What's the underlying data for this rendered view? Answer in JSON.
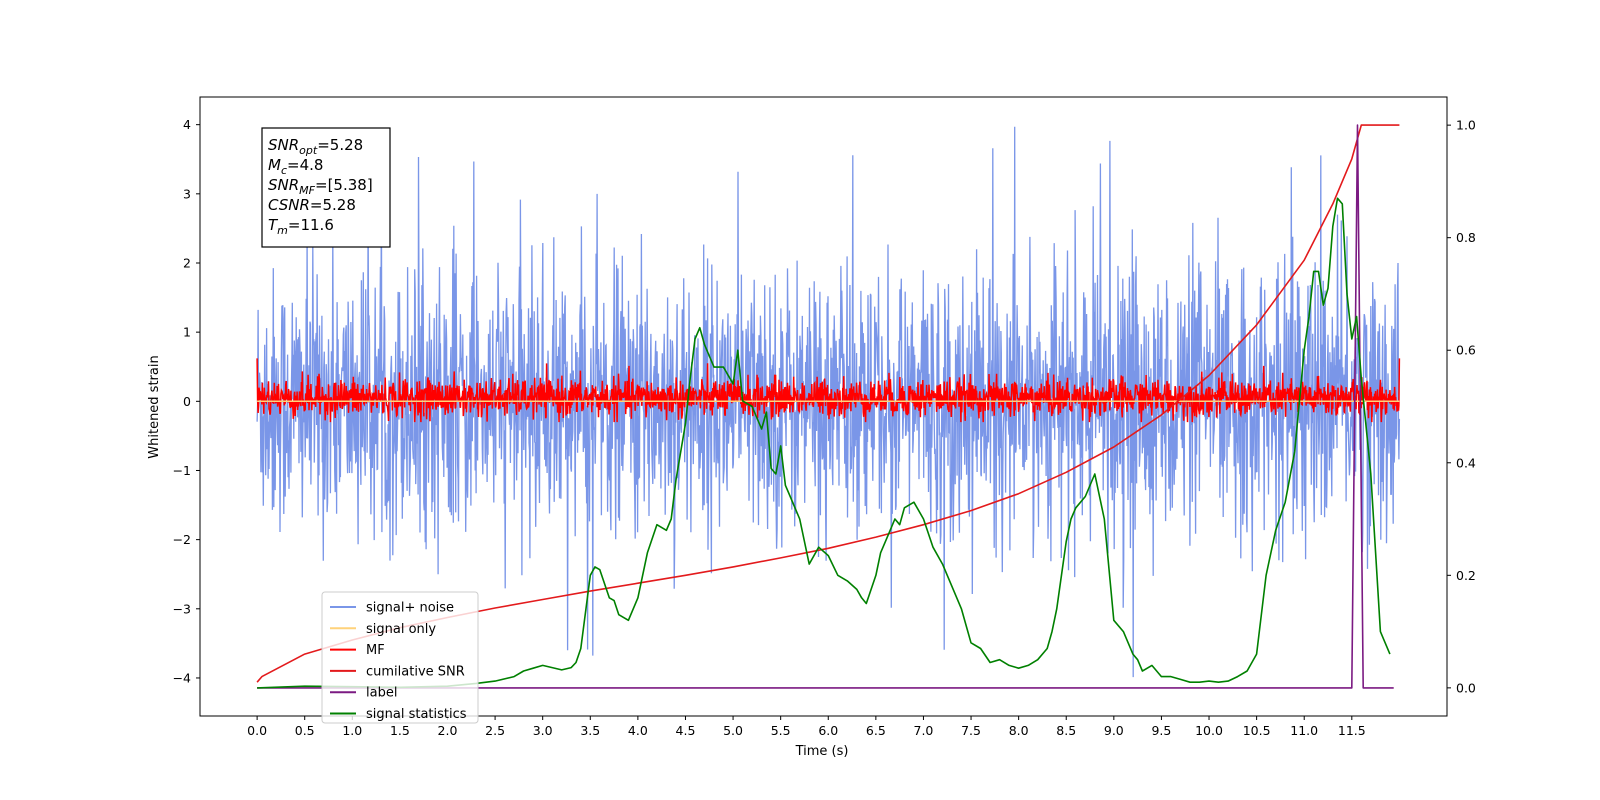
{
  "chart_data": {
    "type": "line",
    "xlabel": "Time (s)",
    "ylabel": "Whitened strain",
    "xlim": [
      -0.6,
      12.5
    ],
    "ylim": [
      -4.55,
      4.4
    ],
    "y2lim": [
      -0.05,
      1.05
    ],
    "x_ticks": [
      0.0,
      0.5,
      1.0,
      1.5,
      2.0,
      2.5,
      3.0,
      3.5,
      4.0,
      4.5,
      5.0,
      5.5,
      6.0,
      6.5,
      7.0,
      7.5,
      8.0,
      8.5,
      9.0,
      9.5,
      10.0,
      10.5,
      11.0,
      11.5
    ],
    "x_tick_labels": [
      "0.0",
      "0.5",
      "1.0",
      "1.5",
      "2.0",
      "2.5",
      "3.0",
      "3.5",
      "4.0",
      "4.5",
      "5.0",
      "5.5",
      "6.0",
      "6.5",
      "7.0",
      "7.5",
      "8.0",
      "8.5",
      "9.0",
      "9.5",
      "10.0",
      "10.5",
      "11.0",
      "11.5"
    ],
    "y_ticks": [
      -4,
      -3,
      -2,
      -1,
      0,
      1,
      2,
      3,
      4
    ],
    "y_tick_labels": [
      "−4",
      "−3",
      "−2",
      "−1",
      "0",
      "1",
      "2",
      "3",
      "4"
    ],
    "y2_ticks": [
      0.0,
      0.2,
      0.4,
      0.6,
      0.8,
      1.0
    ],
    "y2_tick_labels": [
      "0.0",
      "0.2",
      "0.4",
      "0.6",
      "0.8",
      "1.0"
    ],
    "legend_position": "lower-left",
    "annotation": {
      "lines": [
        {
          "base": "SNR",
          "sub": "opt",
          "value": "=5.28"
        },
        {
          "base": "M",
          "sub": "c",
          "value": "=4.8"
        },
        {
          "base": "SNR",
          "sub": "MF",
          "value": "=[5.38]"
        },
        {
          "base": "CSNR",
          "sub": "",
          "value": "=5.28"
        },
        {
          "base": "T",
          "sub": "m",
          "value": "=11.6"
        }
      ]
    },
    "series": [
      {
        "name": "signal+ noise",
        "color": "#7a96e8",
        "axis": "left",
        "x_range": [
          0.0,
          12.0
        ],
        "n_points": 2400,
        "envelope": {
          "mean": 0.0,
          "typical_min": -2.3,
          "typical_max": 2.3,
          "peak_min": -4.15,
          "peak_max": 4.0
        }
      },
      {
        "name": "signal only",
        "color": "#ffd27a",
        "axis": "left",
        "x": [
          0.0,
          12.0
        ],
        "y": [
          0.0,
          0.0
        ]
      },
      {
        "name": "MF",
        "color": "#ff0000",
        "axis": "left",
        "x_range": [
          0.0,
          12.0
        ],
        "n_points": 2400,
        "envelope": {
          "mean": 0.0,
          "typical_min": -0.3,
          "typical_max": 0.45,
          "start_value": 1.0,
          "end_value": 0.9
        }
      },
      {
        "name": "cumilative SNR",
        "color": "#e31a1c",
        "axis": "right",
        "x": [
          0.0,
          0.05,
          0.5,
          1.0,
          1.5,
          2.0,
          2.5,
          3.0,
          3.5,
          4.0,
          4.5,
          5.0,
          5.5,
          6.0,
          6.5,
          7.0,
          7.5,
          8.0,
          8.5,
          9.0,
          9.5,
          10.0,
          10.5,
          11.0,
          11.3,
          11.5,
          11.6,
          11.65,
          12.0
        ],
        "y": [
          0.01,
          0.02,
          0.06,
          0.085,
          0.107,
          0.125,
          0.142,
          0.157,
          0.172,
          0.186,
          0.2,
          0.215,
          0.231,
          0.248,
          0.268,
          0.29,
          0.315,
          0.345,
          0.383,
          0.428,
          0.485,
          0.555,
          0.645,
          0.76,
          0.86,
          0.94,
          1.0,
          1.0,
          1.0
        ]
      },
      {
        "name": "label",
        "color": "#7b1a82",
        "axis": "right",
        "x": [
          0.0,
          11.5,
          11.56,
          11.62,
          11.94
        ],
        "y": [
          0.0,
          0.0,
          1.0,
          0.0,
          0.0
        ]
      },
      {
        "name": "signal statistics",
        "color": "#008000",
        "axis": "right",
        "x": [
          0.0,
          0.5,
          1.0,
          1.5,
          2.0,
          2.3,
          2.5,
          2.7,
          2.8,
          2.9,
          3.0,
          3.1,
          3.2,
          3.3,
          3.35,
          3.4,
          3.5,
          3.55,
          3.6,
          3.7,
          3.75,
          3.8,
          3.9,
          4.0,
          4.1,
          4.2,
          4.3,
          4.35,
          4.4,
          4.5,
          4.55,
          4.6,
          4.65,
          4.7,
          4.75,
          4.8,
          4.9,
          5.0,
          5.05,
          5.1,
          5.2,
          5.3,
          5.35,
          5.4,
          5.45,
          5.5,
          5.55,
          5.6,
          5.7,
          5.8,
          5.9,
          6.0,
          6.1,
          6.2,
          6.3,
          6.35,
          6.4,
          6.5,
          6.55,
          6.6,
          6.7,
          6.75,
          6.8,
          6.9,
          7.0,
          7.1,
          7.2,
          7.3,
          7.4,
          7.5,
          7.6,
          7.7,
          7.8,
          7.9,
          8.0,
          8.1,
          8.2,
          8.3,
          8.35,
          8.4,
          8.5,
          8.55,
          8.6,
          8.7,
          8.8,
          8.9,
          9.0,
          9.1,
          9.2,
          9.25,
          9.3,
          9.4,
          9.5,
          9.6,
          9.7,
          9.8,
          9.9,
          10.0,
          10.1,
          10.2,
          10.3,
          10.4,
          10.5,
          10.6,
          10.7,
          10.8,
          10.9,
          11.0,
          11.05,
          11.1,
          11.15,
          11.2,
          11.25,
          11.3,
          11.35,
          11.4,
          11.45,
          11.5,
          11.55,
          11.6,
          11.7,
          11.8,
          11.9
        ],
        "y": [
          0.0,
          0.003,
          0.002,
          0.001,
          0.003,
          0.008,
          0.012,
          0.02,
          0.03,
          0.035,
          0.04,
          0.036,
          0.032,
          0.036,
          0.045,
          0.07,
          0.2,
          0.215,
          0.21,
          0.16,
          0.155,
          0.13,
          0.12,
          0.16,
          0.24,
          0.29,
          0.28,
          0.3,
          0.37,
          0.47,
          0.55,
          0.62,
          0.64,
          0.61,
          0.59,
          0.57,
          0.57,
          0.54,
          0.6,
          0.51,
          0.5,
          0.46,
          0.49,
          0.39,
          0.38,
          0.43,
          0.36,
          0.34,
          0.3,
          0.22,
          0.25,
          0.235,
          0.2,
          0.19,
          0.175,
          0.16,
          0.15,
          0.2,
          0.24,
          0.26,
          0.3,
          0.29,
          0.32,
          0.33,
          0.3,
          0.25,
          0.22,
          0.18,
          0.14,
          0.08,
          0.07,
          0.045,
          0.05,
          0.04,
          0.035,
          0.04,
          0.05,
          0.07,
          0.1,
          0.14,
          0.26,
          0.3,
          0.32,
          0.34,
          0.38,
          0.3,
          0.12,
          0.1,
          0.06,
          0.05,
          0.03,
          0.04,
          0.02,
          0.02,
          0.015,
          0.01,
          0.01,
          0.012,
          0.01,
          0.012,
          0.02,
          0.03,
          0.06,
          0.2,
          0.28,
          0.33,
          0.42,
          0.6,
          0.66,
          0.74,
          0.74,
          0.68,
          0.71,
          0.82,
          0.87,
          0.86,
          0.7,
          0.62,
          0.66,
          0.55,
          0.38,
          0.1,
          0.06
        ]
      }
    ]
  }
}
